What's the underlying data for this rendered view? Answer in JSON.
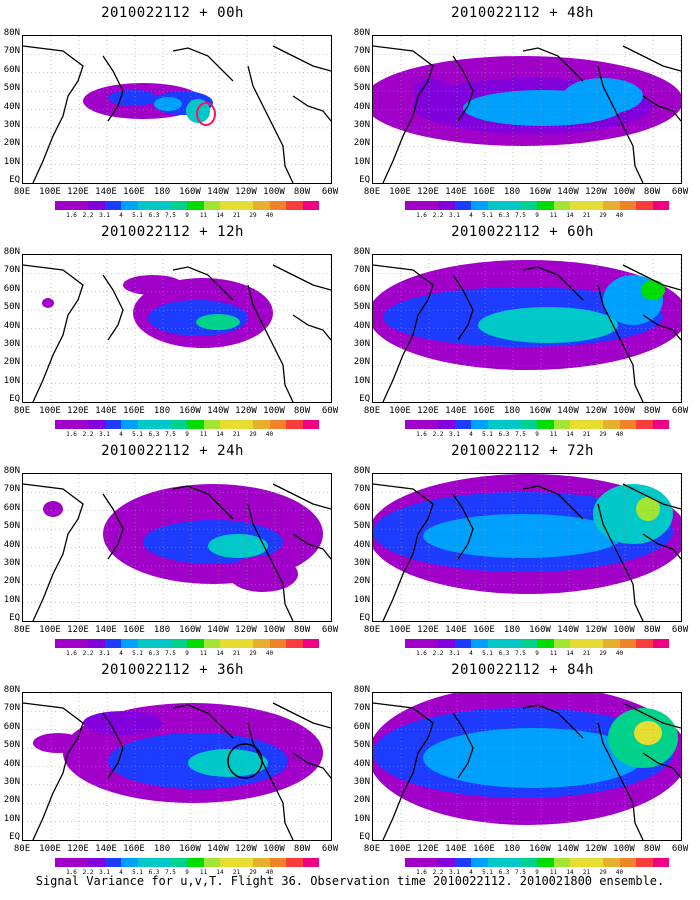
{
  "caption": "Signal Variance for u,v,T. Flight 36. Observation time 2010022112. 2010021800 ensemble.",
  "lat_labels": [
    "80N",
    "70N",
    "60N",
    "50N",
    "40N",
    "30N",
    "20N",
    "10N",
    "EQ"
  ],
  "lon_labels": [
    "80E",
    "100E",
    "120E",
    "140E",
    "160E",
    "180",
    "160W",
    "140W",
    "120W",
    "100W",
    "80W",
    "60W"
  ],
  "colorbar": {
    "levels": [
      "1.6",
      "2.2",
      "3.1",
      "4",
      "5.1",
      "6.3",
      "7.5",
      "9",
      "11",
      "14",
      "21",
      "29",
      "40"
    ],
    "colors": [
      "#a000c8",
      "#8200dc",
      "#1e3cff",
      "#00a0ff",
      "#00c8c8",
      "#00d28c",
      "#00dc00",
      "#a0e632",
      "#e6dc32",
      "#e6af2d",
      "#f08228",
      "#fa3c3c",
      "#f00082"
    ]
  },
  "chart_data": [
    {
      "type": "heatmap",
      "title": "2010022112 + 00h",
      "lead_hours": 0,
      "xlim": [
        "80E",
        "60W"
      ],
      "ylim": [
        "EQ",
        "80N"
      ],
      "grid": true,
      "color_scale": "1.6-40",
      "max_level": "7.5",
      "annotation": "red contour near 140W 40N"
    },
    {
      "type": "heatmap",
      "title": "2010022112 + 48h",
      "lead_hours": 48,
      "xlim": [
        "80E",
        "60W"
      ],
      "ylim": [
        "EQ",
        "80N"
      ],
      "grid": true,
      "color_scale": "1.6-40",
      "max_level": "5.1"
    },
    {
      "type": "heatmap",
      "title": "2010022112 + 12h",
      "lead_hours": 12,
      "xlim": [
        "80E",
        "60W"
      ],
      "ylim": [
        "EQ",
        "80N"
      ],
      "grid": true,
      "color_scale": "1.6-40",
      "max_level": "7.5"
    },
    {
      "type": "heatmap",
      "title": "2010022112 + 60h",
      "lead_hours": 60,
      "xlim": [
        "80E",
        "60W"
      ],
      "ylim": [
        "EQ",
        "80N"
      ],
      "grid": true,
      "color_scale": "1.6-40",
      "max_level": "7.5"
    },
    {
      "type": "heatmap",
      "title": "2010022112 + 24h",
      "lead_hours": 24,
      "xlim": [
        "80E",
        "60W"
      ],
      "ylim": [
        "EQ",
        "80N"
      ],
      "grid": true,
      "color_scale": "1.6-40",
      "max_level": "7.5"
    },
    {
      "type": "heatmap",
      "title": "2010022112 + 72h",
      "lead_hours": 72,
      "xlim": [
        "80E",
        "60W"
      ],
      "ylim": [
        "EQ",
        "80N"
      ],
      "grid": true,
      "color_scale": "1.6-40",
      "max_level": "9"
    },
    {
      "type": "heatmap",
      "title": "2010022112 + 36h",
      "lead_hours": 36,
      "xlim": [
        "80E",
        "60W"
      ],
      "ylim": [
        "EQ",
        "80N"
      ],
      "grid": true,
      "color_scale": "1.6-40",
      "max_level": "7.5",
      "annotation": "black circle near 120W 40N"
    },
    {
      "type": "heatmap",
      "title": "2010022112 + 84h",
      "lead_hours": 84,
      "xlim": [
        "80E",
        "60W"
      ],
      "ylim": [
        "EQ",
        "80N"
      ],
      "grid": true,
      "color_scale": "1.6-40",
      "max_level": "9"
    }
  ]
}
